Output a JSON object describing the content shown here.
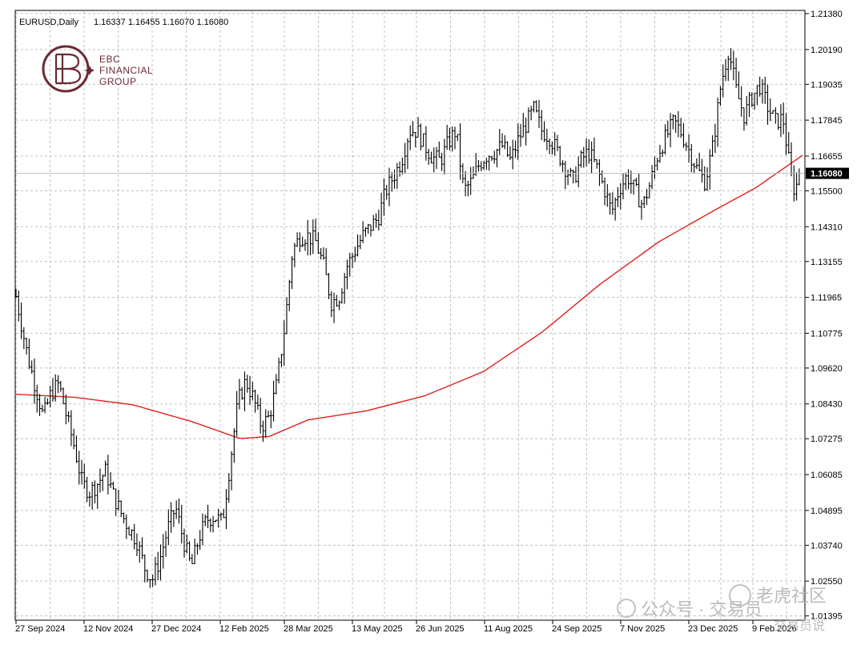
{
  "header": {
    "symbol": "EURUSD,Daily",
    "ohlc": "1.16337 1.16455 1.16070 1.16080"
  },
  "logo": {
    "line1": "EBC",
    "line2": "FINANCIAL",
    "line3": "GROUP"
  },
  "watermark": {
    "left": "公众号 · 交易员",
    "right": "老虎社区",
    "sub": "交易员说"
  },
  "chart_data": {
    "type": "candlestick",
    "symbol": "EURUSD",
    "timeframe": "Daily",
    "last_price": 1.1608,
    "y_ticks": [
      "1.21380",
      "1.20190",
      "1.19035",
      "1.17845",
      "1.16655",
      "1.15500",
      "1.14310",
      "1.13155",
      "1.11965",
      "1.10775",
      "1.09620",
      "1.08430",
      "1.07275",
      "1.06085",
      "1.04895",
      "1.03740",
      "1.02550",
      "1.01395"
    ],
    "ylim": [
      1.0128,
      1.2146
    ],
    "x_labels": [
      "27 Sep 2024",
      "12 Nov 2024",
      "27 Dec 2024",
      "12 Feb 2025",
      "28 Mar 2025",
      "13 May 2025",
      "26 Jun 2025",
      "11 Aug 2025",
      "24 Sep 2025",
      "7 Nov 2025",
      "23 Dec 2025",
      "9 Feb 2026"
    ],
    "price_path": [
      [
        0,
        1.12
      ],
      [
        3,
        1.11
      ],
      [
        6,
        1.1
      ],
      [
        10,
        1.09
      ],
      [
        14,
        1.08
      ],
      [
        18,
        1.088
      ],
      [
        22,
        1.091
      ],
      [
        26,
        1.08
      ],
      [
        30,
        1.07
      ],
      [
        34,
        1.058
      ],
      [
        38,
        1.055
      ],
      [
        42,
        1.058
      ],
      [
        46,
        1.062
      ],
      [
        50,
        1.054
      ],
      [
        54,
        1.048
      ],
      [
        58,
        1.043
      ],
      [
        62,
        1.039
      ],
      [
        66,
        1.03
      ],
      [
        70,
        1.026
      ],
      [
        74,
        1.033
      ],
      [
        78,
        1.043
      ],
      [
        82,
        1.05
      ],
      [
        86,
        1.039
      ],
      [
        90,
        1.03
      ],
      [
        94,
        1.04
      ],
      [
        98,
        1.046
      ],
      [
        102,
        1.047
      ],
      [
        106,
        1.045
      ],
      [
        108,
        1.055
      ],
      [
        110,
        1.065
      ],
      [
        114,
        1.085
      ],
      [
        118,
        1.092
      ],
      [
        122,
        1.086
      ],
      [
        126,
        1.077
      ],
      [
        130,
        1.08
      ],
      [
        134,
        1.091
      ],
      [
        138,
        1.11
      ],
      [
        142,
        1.135
      ],
      [
        146,
        1.14
      ],
      [
        150,
        1.14
      ],
      [
        154,
        1.138
      ],
      [
        158,
        1.13
      ],
      [
        162,
        1.118
      ],
      [
        166,
        1.12
      ],
      [
        170,
        1.13
      ],
      [
        174,
        1.135
      ],
      [
        178,
        1.14
      ],
      [
        182,
        1.143
      ],
      [
        186,
        1.146
      ],
      [
        190,
        1.155
      ],
      [
        194,
        1.16
      ],
      [
        198,
        1.165
      ],
      [
        202,
        1.175
      ],
      [
        206,
        1.175
      ],
      [
        210,
        1.17
      ],
      [
        214,
        1.166
      ],
      [
        218,
        1.165
      ],
      [
        222,
        1.171
      ],
      [
        226,
        1.175
      ],
      [
        230,
        1.155
      ],
      [
        234,
        1.158
      ],
      [
        238,
        1.164
      ],
      [
        242,
        1.167
      ],
      [
        246,
        1.168
      ],
      [
        250,
        1.17
      ],
      [
        254,
        1.165
      ],
      [
        258,
        1.172
      ],
      [
        262,
        1.177
      ],
      [
        266,
        1.182
      ],
      [
        270,
        1.175
      ],
      [
        274,
        1.173
      ],
      [
        278,
        1.168
      ],
      [
        282,
        1.163
      ],
      [
        286,
        1.158
      ],
      [
        290,
        1.165
      ],
      [
        294,
        1.168
      ],
      [
        298,
        1.163
      ],
      [
        302,
        1.156
      ],
      [
        306,
        1.148
      ],
      [
        310,
        1.156
      ],
      [
        314,
        1.16
      ],
      [
        318,
        1.155
      ],
      [
        322,
        1.15
      ],
      [
        326,
        1.158
      ],
      [
        330,
        1.168
      ],
      [
        334,
        1.173
      ],
      [
        338,
        1.178
      ],
      [
        342,
        1.174
      ],
      [
        346,
        1.168
      ],
      [
        350,
        1.162
      ],
      [
        354,
        1.158
      ],
      [
        358,
        1.17
      ],
      [
        362,
        1.19
      ],
      [
        366,
        1.202
      ],
      [
        370,
        1.188
      ],
      [
        374,
        1.18
      ],
      [
        378,
        1.186
      ],
      [
        382,
        1.19
      ],
      [
        386,
        1.183
      ],
      [
        390,
        1.178
      ],
      [
        394,
        1.179
      ],
      [
        398,
        1.16
      ],
      [
        400,
        1.155
      ],
      [
        403,
        1.161
      ]
    ],
    "ma_path": [
      [
        0,
        1.0875
      ],
      [
        30,
        1.0865
      ],
      [
        60,
        1.084
      ],
      [
        90,
        1.0785
      ],
      [
        115,
        1.0728
      ],
      [
        130,
        1.0735
      ],
      [
        150,
        1.079
      ],
      [
        180,
        1.082
      ],
      [
        210,
        1.087
      ],
      [
        240,
        1.095
      ],
      [
        270,
        1.108
      ],
      [
        300,
        1.124
      ],
      [
        330,
        1.138
      ],
      [
        360,
        1.149
      ],
      [
        380,
        1.156
      ],
      [
        404,
        1.1668
      ]
    ],
    "colors": {
      "bars": "#000000",
      "ma": "#e0201c",
      "grid": "#c0c0c0",
      "price_line": "#bdbdbd",
      "price_label_bg": "#000000",
      "price_label_text": "#ffffff"
    },
    "grid": true,
    "grid_style": "dashed"
  }
}
